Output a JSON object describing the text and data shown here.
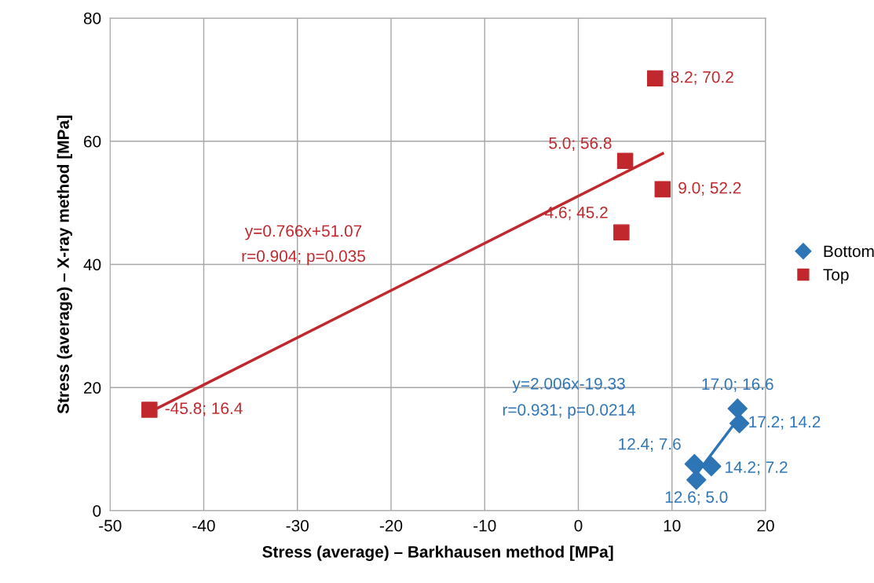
{
  "chart_data": {
    "type": "scatter",
    "xlabel": "Stress (average) – Barkhausen method [MPa]",
    "ylabel": "Stress (average) – X-ray method [MPa]",
    "xlim": [
      -50,
      20
    ],
    "xticks": [
      -50,
      -40,
      -30,
      -20,
      -10,
      0,
      10,
      20
    ],
    "ylim": [
      0,
      80
    ],
    "yticks": [
      0,
      20,
      40,
      60,
      80
    ],
    "grid": true,
    "legend": "right",
    "series": [
      {
        "name": "Bottom",
        "color": "#2e75b6",
        "marker": "diamond",
        "x": [
          17.0,
          17.2,
          12.4,
          14.2,
          12.6
        ],
        "values": [
          16.6,
          14.2,
          7.6,
          7.2,
          5.0
        ],
        "value_labels": [
          "17.0; 16.6",
          "17.2; 14.2",
          "12.4; 7.6",
          "14.2; 7.2",
          "12.6; 5.0"
        ]
      },
      {
        "name": "Top",
        "color": "#c0282d",
        "marker": "square",
        "x": [
          8.2,
          5.0,
          9.0,
          4.6,
          -45.8
        ],
        "values": [
          70.2,
          56.8,
          52.2,
          45.2,
          16.4
        ],
        "value_labels": [
          "8.2; 70.2",
          "5.0; 56.8",
          "9.0; 52.2",
          "4.6; 45.2",
          "-45.8; 16.4"
        ]
      },
      {
        "type": "line",
        "color": "#2e75b6",
        "x": [
          12.4,
          17.2
        ],
        "values": [
          5.5,
          15.2
        ]
      },
      {
        "type": "line",
        "color": "#c0282d",
        "x": [
          -45.8,
          9.0
        ],
        "values": [
          16.0,
          58.0
        ]
      }
    ],
    "annotations": [
      "y=0.766x+51.07",
      "r=0.904; p=0.035",
      "y=2.006x-19.33",
      "r=0.931; p=0.0214"
    ]
  }
}
